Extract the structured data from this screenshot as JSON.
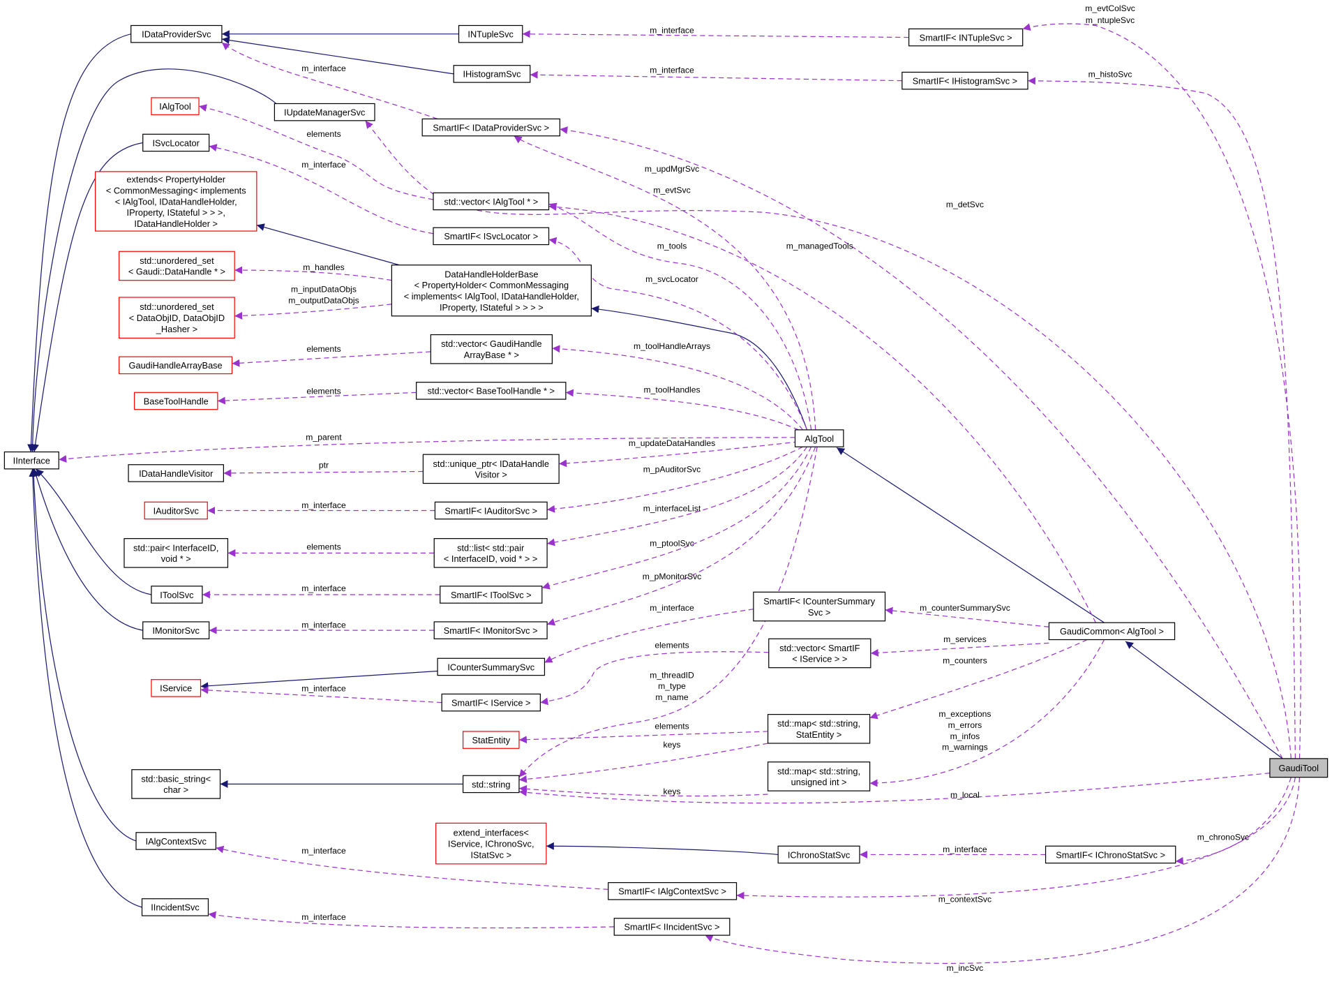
{
  "diagram": {
    "type": "collaboration-graph",
    "colors": {
      "inheritance": "#191970",
      "usage": "#9a32cd",
      "undocumented_border": "#ff0000",
      "node_border": "#000000",
      "focus_fill": "#bfbfbf"
    },
    "nodes": {
      "IDataProviderSvc": [
        "IDataProviderSvc"
      ],
      "INTupleSvc": [
        "INTupleSvc"
      ],
      "SmartIF_INTupleSvc": [
        "SmartIF< INTupleSvc >"
      ],
      "IHistogramSvc": [
        "IHistogramSvc"
      ],
      "SmartIF_IHistogramSvc": [
        "SmartIF< IHistogramSvc >"
      ],
      "IAlgTool": [
        "IAlgTool"
      ],
      "IUpdateManagerSvc": [
        "IUpdateManagerSvc"
      ],
      "SmartIF_IDataProviderSvc": [
        "SmartIF< IDataProviderSvc >"
      ],
      "ISvcLocator": [
        "ISvcLocator"
      ],
      "extends": [
        "extends< PropertyHolder",
        "< CommonMessaging< implements",
        "< IAlgTool, IDataHandleHolder,",
        "IProperty, IStateful > > >,",
        "IDataHandleHolder >"
      ],
      "vector_IAlgTool": [
        "std::vector< IAlgTool * >"
      ],
      "SmartIF_ISvcLocator": [
        "SmartIF< ISvcLocator >"
      ],
      "uset_DataHandle": [
        "std::unordered_set",
        "< Gaudi::DataHandle * >"
      ],
      "DataHandleHolderBase": [
        "DataHandleHolderBase",
        "< PropertyHolder< CommonMessaging",
        "< implements< IAlgTool, IDataHandleHolder,",
        "IProperty, IStateful > > > >"
      ],
      "uset_DataObjID": [
        "std::unordered_set",
        "< DataObjID, DataObjID",
        "_Hasher >"
      ],
      "vector_GHAB": [
        "std::vector< GaudiHandle",
        "ArrayBase * >"
      ],
      "GaudiHandleArrayBase": [
        "GaudiHandleArrayBase"
      ],
      "vector_BTH": [
        "std::vector< BaseToolHandle * >"
      ],
      "BaseToolHandle": [
        "BaseToolHandle"
      ],
      "AlgTool": [
        "AlgTool"
      ],
      "IInterface": [
        "IInterface"
      ],
      "IDataHandleVisitor": [
        "IDataHandleVisitor"
      ],
      "unique_ptr": [
        "std::unique_ptr< IDataHandle",
        "Visitor >"
      ],
      "IAuditorSvc": [
        "IAuditorSvc"
      ],
      "SmartIF_IAuditorSvc": [
        "SmartIF< IAuditorSvc >"
      ],
      "pair": [
        "std::pair< InterfaceID,",
        "void * >"
      ],
      "list_pair": [
        "std::list< std::pair",
        "< InterfaceID, void * > >"
      ],
      "IToolSvc": [
        "IToolSvc"
      ],
      "SmartIF_IToolSvc": [
        "SmartIF< IToolSvc >"
      ],
      "SmartIF_ICounterSummarySvc": [
        "SmartIF< ICounterSummary",
        "Svc >"
      ],
      "IMonitorSvc": [
        "IMonitorSvc"
      ],
      "SmartIF_IMonitorSvc": [
        "SmartIF< IMonitorSvc >"
      ],
      "GaudiCommon": [
        "GaudiCommon< AlgTool >"
      ],
      "vector_SmartIF_IService": [
        "std::vector< SmartIF",
        "< IService > >"
      ],
      "ICounterSummarySvc": [
        "ICounterSummarySvc"
      ],
      "IService": [
        "IService"
      ],
      "SmartIF_IService": [
        "SmartIF< IService >"
      ],
      "map_StatEntity": [
        "std::map< std::string,",
        "StatEntity >"
      ],
      "StatEntity": [
        "StatEntity"
      ],
      "basic_string": [
        "std::basic_string<",
        "char >"
      ],
      "string": [
        "std::string"
      ],
      "map_uint": [
        "std::map< std::string,",
        "unsigned int >"
      ],
      "GaudiTool": [
        "GaudiTool"
      ],
      "extend_interfaces": [
        "extend_interfaces<",
        "IService, IChronoSvc,",
        "IStatSvc >"
      ],
      "IChronoStatSvc": [
        "IChronoStatSvc"
      ],
      "SmartIF_IChronoStatSvc": [
        "SmartIF< IChronoStatSvc >"
      ],
      "IAlgContextSvc": [
        "IAlgContextSvc"
      ],
      "SmartIF_IAlgContextSvc": [
        "SmartIF< IAlgContextSvc >"
      ],
      "IIncidentSvc": [
        "IIncidentSvc"
      ],
      "SmartIF_IIncidentSvc": [
        "SmartIF< IIncidentSvc >"
      ]
    },
    "edge_labels": [
      "m_interface",
      "m_interface",
      "m_evtColSvc",
      "m_ntupleSvc",
      "m_histoSvc",
      "m_interface",
      "elements",
      "m_interface",
      "m_updMgrSvc",
      "m_evtSvc",
      "m_detSvc",
      "m_tools",
      "m_managedTools",
      "m_svcLocator",
      "m_handles",
      "m_inputDataObjs",
      "m_outputDataObjs",
      "elements",
      "m_toolHandleArrays",
      "elements",
      "m_toolHandles",
      "m_parent",
      "m_updateDataHandles",
      "ptr",
      "m_pAuditorSvc",
      "m_interface",
      "m_interfaceList",
      "elements",
      "m_ptoolSvc",
      "m_interface",
      "m_pMonitorSvc",
      "m_interface",
      "m_counterSummarySvc",
      "m_interface",
      "m_services",
      "elements",
      "m_counters",
      "m_threadID",
      "m_type",
      "m_name",
      "m_interface",
      "m_exceptions",
      "m_errors",
      "m_infos",
      "m_warnings",
      "elements",
      "keys",
      "keys",
      "m_local",
      "m_chronoSvc",
      "m_interface",
      "m_interface",
      "m_contextSvc",
      "m_interface",
      "m_incSvc"
    ]
  }
}
